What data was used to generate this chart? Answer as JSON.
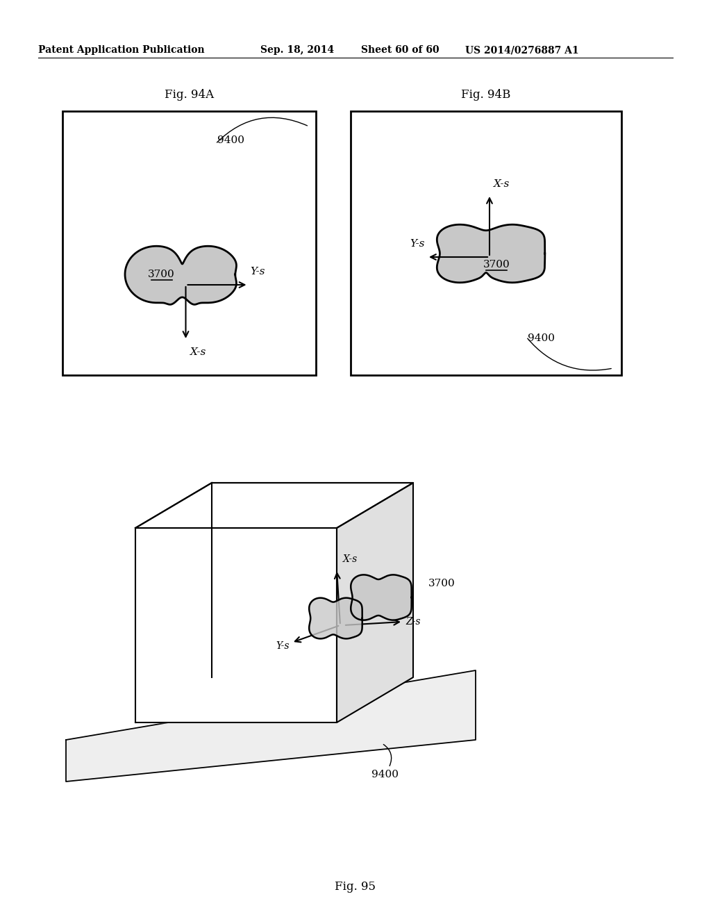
{
  "bg_color": "#ffffff",
  "header_text": "Patent Application Publication",
  "header_date": "Sep. 18, 2014",
  "header_sheet": "Sheet 60 of 60",
  "header_patent": "US 2014/0276887 A1",
  "fig94A_title": "Fig. 94A",
  "fig94B_title": "Fig. 94B",
  "fig95_title": "Fig. 95",
  "label_9400": "9400",
  "label_3700": "3700",
  "shape_fill": "#c8c8c8",
  "shape_edge": "#000000",
  "text_color": "#000000"
}
